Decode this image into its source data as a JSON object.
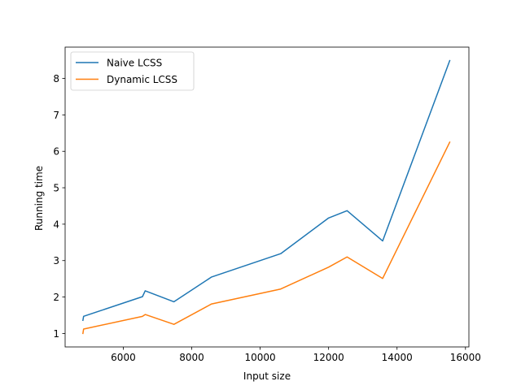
{
  "chart_data": {
    "type": "line",
    "title": "",
    "xlabel": "Input size",
    "ylabel": "Running time",
    "xlim": [
      4300,
      16100
    ],
    "ylim": [
      0.63,
      8.86
    ],
    "xticks": [
      6000,
      8000,
      10000,
      12000,
      14000,
      16000
    ],
    "yticks": [
      1,
      2,
      3,
      4,
      5,
      6,
      7,
      8
    ],
    "grid": false,
    "legend_position": "upper-left",
    "series": [
      {
        "name": "Naive LCSS",
        "color": "#1f77b4",
        "x": [
          4820,
          4840,
          6560,
          6640,
          7480,
          8580,
          10600,
          12000,
          12540,
          13580,
          15540
        ],
        "y": [
          1.36,
          1.47,
          2.01,
          2.17,
          1.87,
          2.55,
          3.19,
          4.17,
          4.37,
          3.54,
          8.49
        ]
      },
      {
        "name": "Dynamic LCSS",
        "color": "#ff7f0e",
        "x": [
          4820,
          4840,
          6560,
          6640,
          7480,
          8580,
          10600,
          12000,
          12540,
          13580,
          15540
        ],
        "y": [
          1.0,
          1.12,
          1.47,
          1.52,
          1.25,
          1.81,
          2.22,
          2.82,
          3.1,
          2.51,
          6.25
        ]
      }
    ]
  }
}
